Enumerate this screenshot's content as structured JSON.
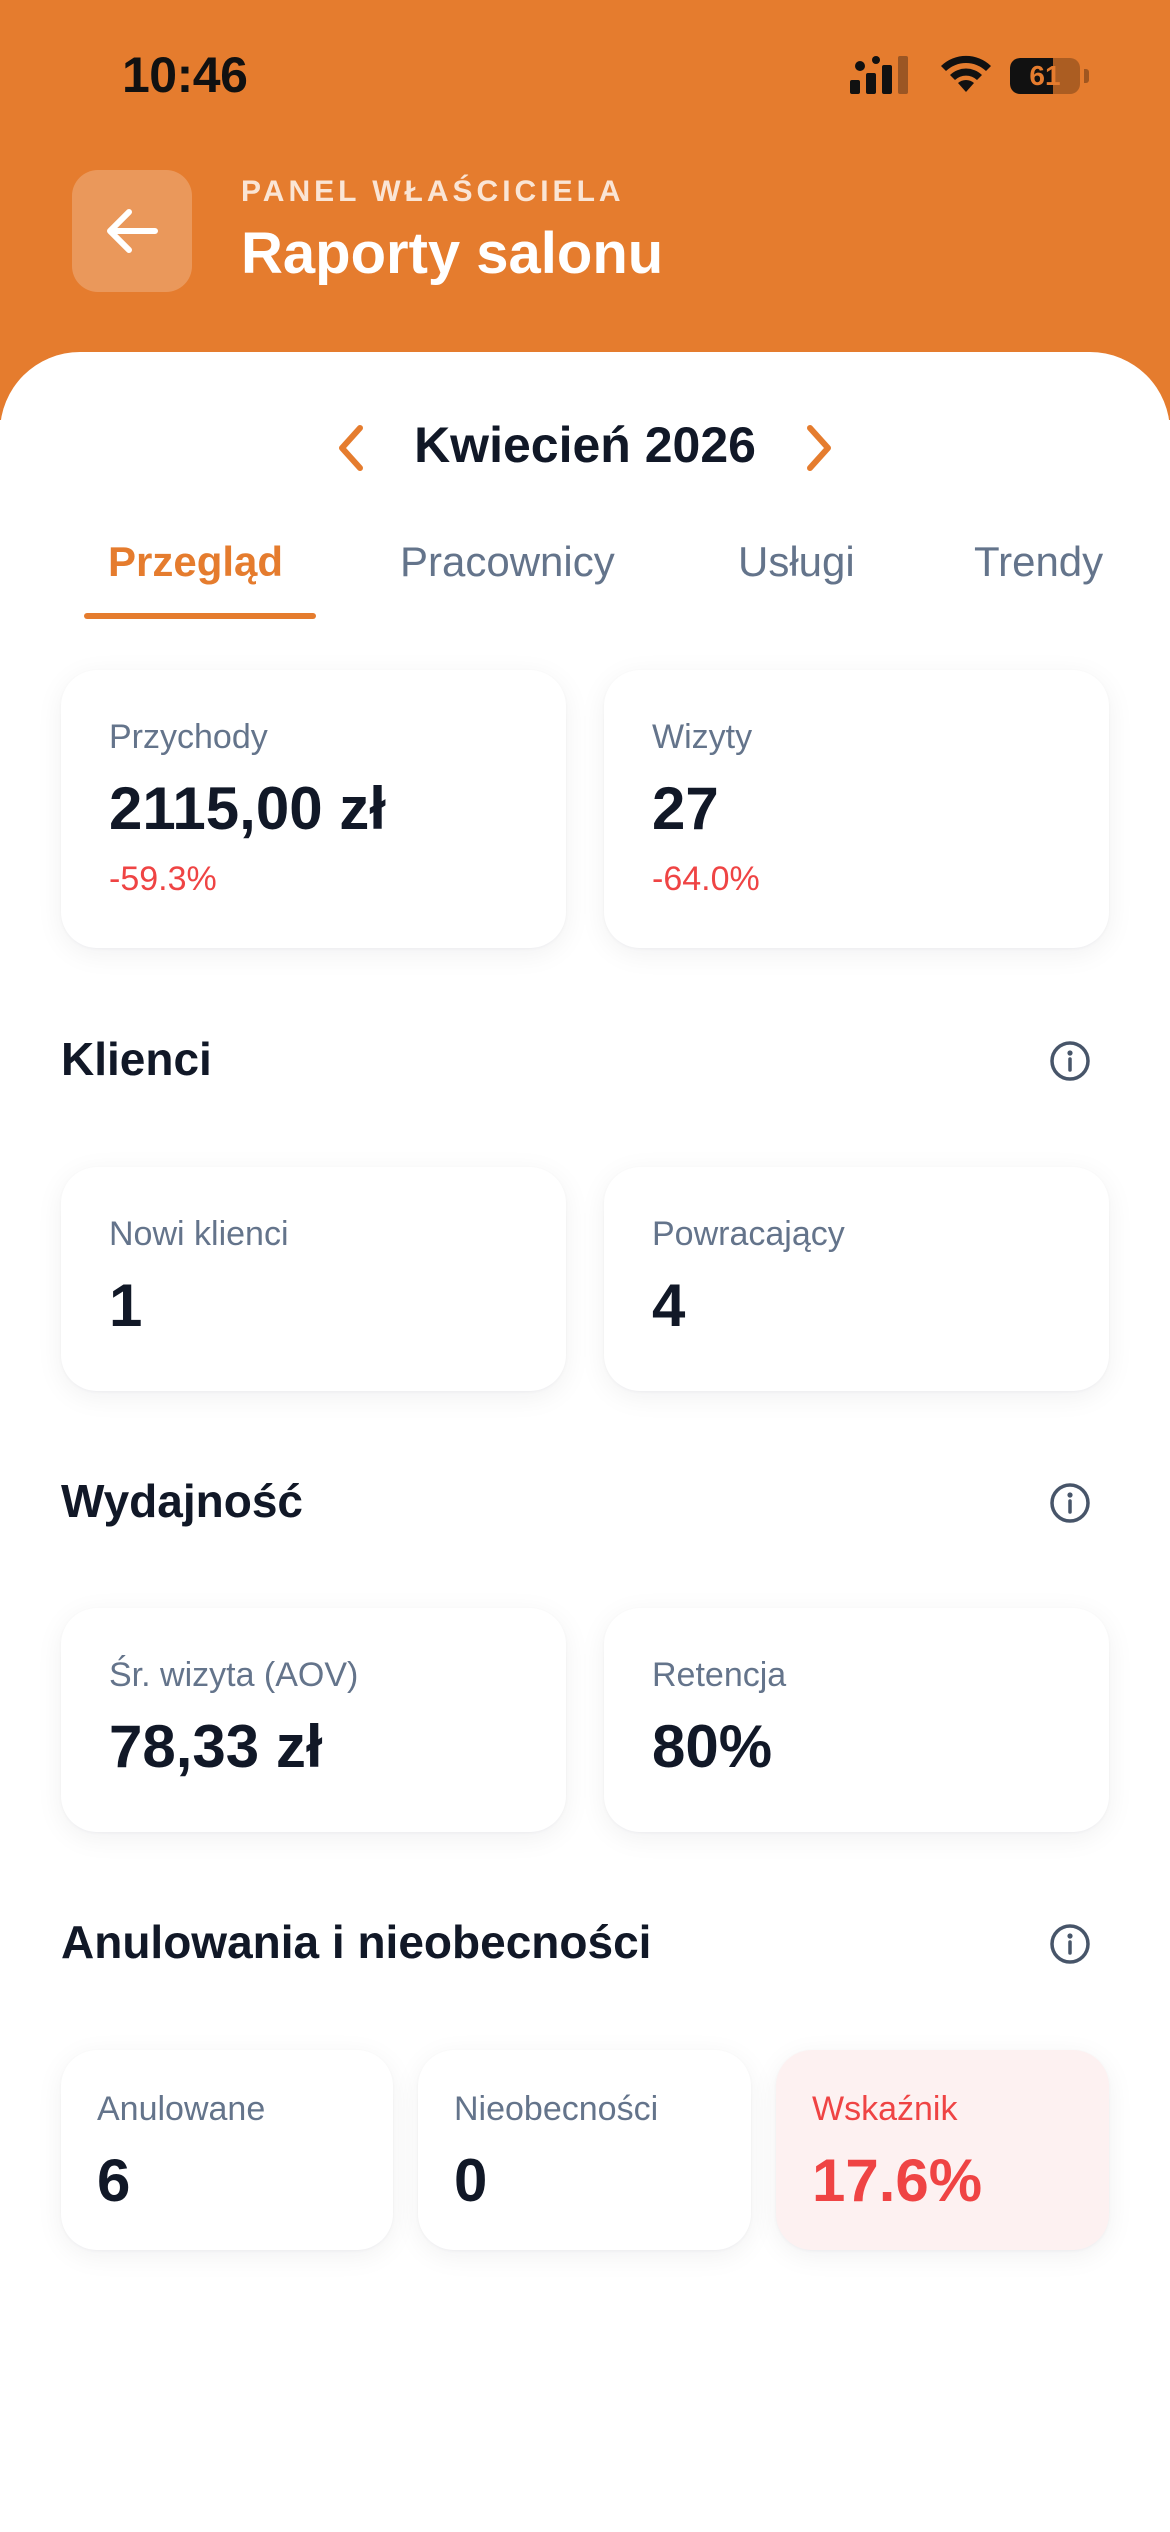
{
  "status_bar": {
    "time": "10:46",
    "battery": "61",
    "battery_level": 0.61
  },
  "header": {
    "eyebrow": "PANEL WŁAŚCICIELA",
    "title": "Raporty salonu"
  },
  "period": {
    "label": "Kwiecień 2026"
  },
  "tabs": [
    {
      "label": "Przegląd",
      "active": true
    },
    {
      "label": "Pracownicy",
      "active": false
    },
    {
      "label": "Usługi",
      "active": false
    },
    {
      "label": "Trendy",
      "active": false
    }
  ],
  "summary": {
    "revenue": {
      "label": "Przychody",
      "value": "2115,00 zł",
      "delta": "-59.3%"
    },
    "visits": {
      "label": "Wizyty",
      "value": "27",
      "delta": "-64.0%"
    }
  },
  "clients": {
    "title": "Klienci",
    "new": {
      "label": "Nowi klienci",
      "value": "1"
    },
    "returning": {
      "label": "Powracający",
      "value": "4"
    }
  },
  "performance": {
    "title": "Wydajność",
    "aov": {
      "label": "Śr. wizyta (AOV)",
      "value": "78,33 zł"
    },
    "retention": {
      "label": "Retencja",
      "value": "80%"
    }
  },
  "cancellations": {
    "title": "Anulowania i nieobecności",
    "cancelled": {
      "label": "Anulowane",
      "value": "6"
    },
    "no_shows": {
      "label": "Nieobecności",
      "value": "0"
    },
    "rate": {
      "label": "Wskaźnik",
      "value": "17.6%"
    }
  },
  "colors": {
    "accent": "#E57C2E",
    "negative": "#EF4444",
    "muted": "#64748B",
    "text": "#111827"
  }
}
